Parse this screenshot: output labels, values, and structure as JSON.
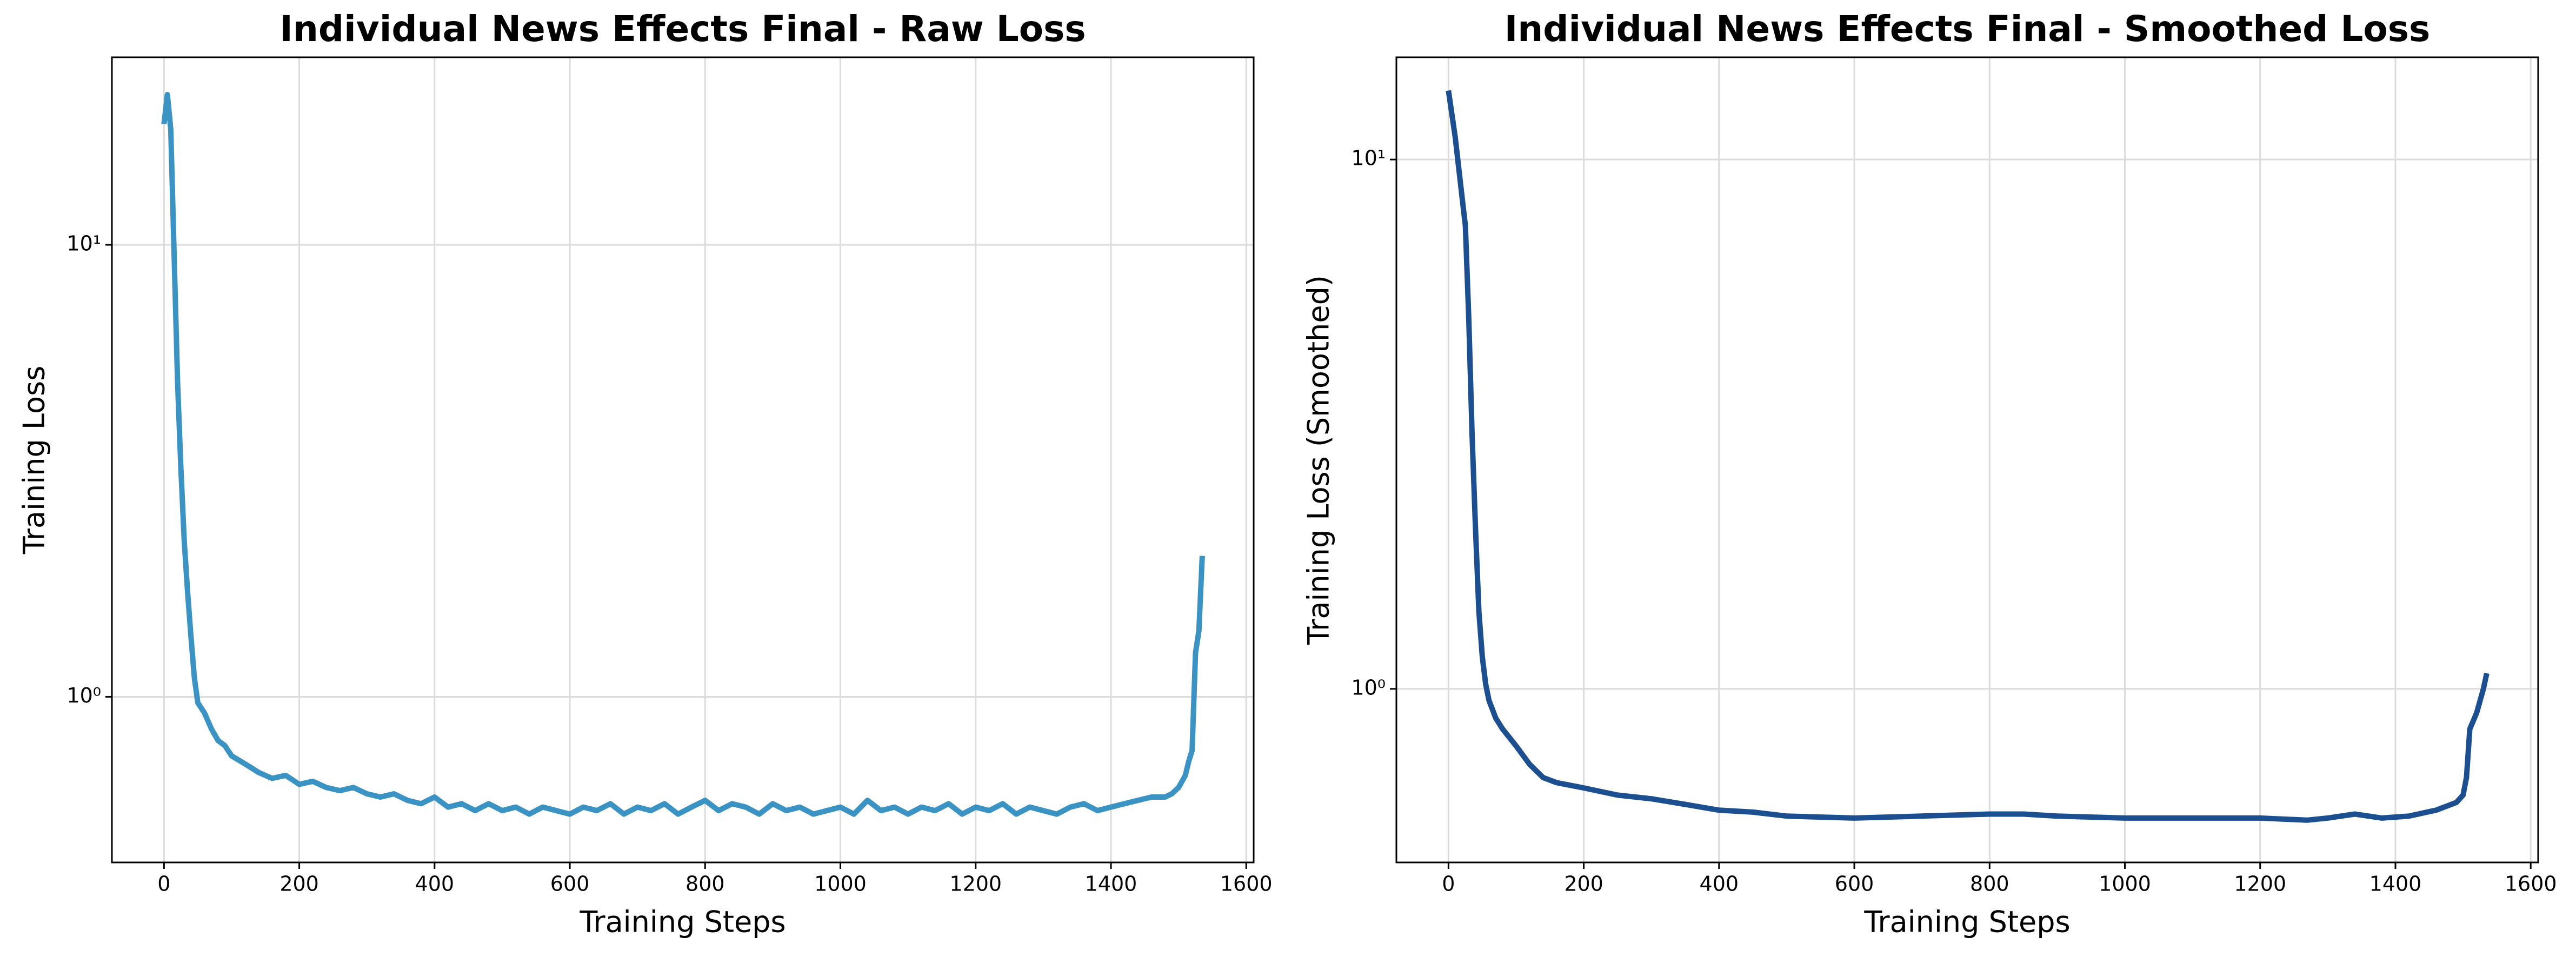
{
  "chart_data": [
    {
      "type": "line",
      "title": "Individual News Effects Final - Raw Loss",
      "xlabel": "Training Steps",
      "ylabel": "Training Loss",
      "color": "#3a93c3",
      "x": [
        0,
        5,
        10,
        15,
        20,
        25,
        30,
        35,
        40,
        45,
        50,
        60,
        70,
        80,
        90,
        100,
        120,
        140,
        160,
        180,
        200,
        220,
        240,
        260,
        280,
        300,
        320,
        340,
        360,
        380,
        400,
        420,
        440,
        460,
        480,
        500,
        520,
        540,
        560,
        580,
        600,
        620,
        640,
        660,
        680,
        700,
        720,
        740,
        760,
        780,
        800,
        820,
        840,
        860,
        880,
        900,
        920,
        940,
        960,
        980,
        1000,
        1020,
        1040,
        1060,
        1080,
        1100,
        1120,
        1140,
        1160,
        1180,
        1200,
        1220,
        1240,
        1260,
        1280,
        1300,
        1320,
        1340,
        1360,
        1380,
        1400,
        1420,
        1440,
        1460,
        1480,
        1490,
        1500,
        1510,
        1515,
        1520,
        1525,
        1530,
        1535
      ],
      "values": [
        18.5,
        21.5,
        18,
        9.5,
        5,
        3.2,
        2.2,
        1.7,
        1.35,
        1.1,
        0.97,
        0.92,
        0.85,
        0.8,
        0.78,
        0.74,
        0.71,
        0.68,
        0.66,
        0.67,
        0.64,
        0.65,
        0.63,
        0.62,
        0.63,
        0.61,
        0.6,
        0.61,
        0.59,
        0.58,
        0.6,
        0.57,
        0.58,
        0.56,
        0.58,
        0.56,
        0.57,
        0.55,
        0.57,
        0.56,
        0.55,
        0.57,
        0.56,
        0.58,
        0.55,
        0.57,
        0.56,
        0.58,
        0.55,
        0.57,
        0.59,
        0.56,
        0.58,
        0.57,
        0.55,
        0.58,
        0.56,
        0.57,
        0.55,
        0.56,
        0.57,
        0.55,
        0.59,
        0.56,
        0.57,
        0.55,
        0.57,
        0.56,
        0.58,
        0.55,
        0.57,
        0.56,
        0.58,
        0.55,
        0.57,
        0.56,
        0.55,
        0.57,
        0.58,
        0.56,
        0.57,
        0.58,
        0.59,
        0.6,
        0.6,
        0.61,
        0.63,
        0.67,
        0.72,
        0.76,
        1.25,
        1.4,
        2.05
      ],
      "xlim": [
        -77,
        1611
      ],
      "xticks": [
        0,
        200,
        400,
        600,
        800,
        1000,
        1200,
        1400,
        1600
      ],
      "ylim": [
        0.43,
        26
      ],
      "yscale": "log",
      "yticks": [
        {
          "value": 1,
          "label": "10⁰"
        },
        {
          "value": 10,
          "label": "10¹"
        }
      ],
      "grid": true
    },
    {
      "type": "line",
      "title": "Individual News Effects Final - Smoothed Loss",
      "xlabel": "Training Steps",
      "ylabel": "Training Loss (Smoothed)",
      "color": "#1c4f8f",
      "x": [
        0,
        10,
        20,
        25,
        30,
        35,
        40,
        45,
        50,
        55,
        60,
        70,
        80,
        100,
        120,
        140,
        160,
        200,
        250,
        300,
        350,
        400,
        450,
        500,
        600,
        700,
        800,
        850,
        900,
        1000,
        1100,
        1200,
        1270,
        1300,
        1340,
        1380,
        1420,
        1460,
        1490,
        1500,
        1505,
        1510,
        1520,
        1530,
        1535
      ],
      "values": [
        13.5,
        11,
        8.5,
        7.5,
        5,
        3,
        2,
        1.4,
        1.15,
        1.02,
        0.95,
        0.88,
        0.84,
        0.78,
        0.72,
        0.68,
        0.665,
        0.65,
        0.63,
        0.62,
        0.605,
        0.59,
        0.585,
        0.575,
        0.57,
        0.575,
        0.58,
        0.58,
        0.575,
        0.57,
        0.57,
        0.57,
        0.565,
        0.57,
        0.58,
        0.57,
        0.575,
        0.59,
        0.61,
        0.63,
        0.68,
        0.84,
        0.9,
        1.0,
        1.07
      ],
      "xlim": [
        -77,
        1611
      ],
      "xticks": [
        0,
        200,
        400,
        600,
        800,
        1000,
        1200,
        1400,
        1600
      ],
      "ylim": [
        0.47,
        15.6
      ],
      "yscale": "log",
      "yticks": [
        {
          "value": 1,
          "label": "10⁰"
        },
        {
          "value": 10,
          "label": "10¹"
        }
      ],
      "grid": true
    }
  ]
}
